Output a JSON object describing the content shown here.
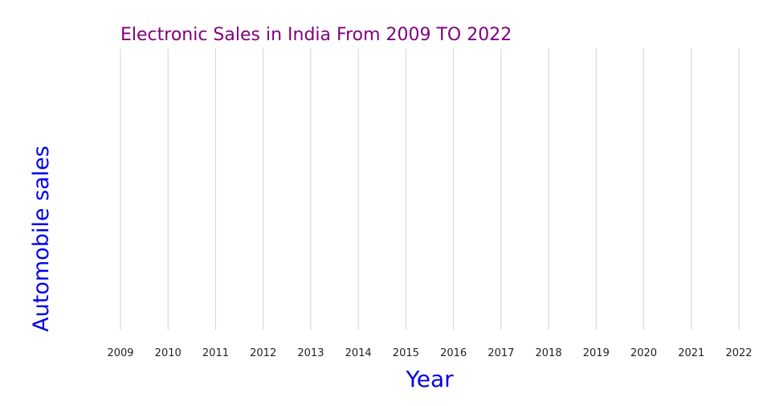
{
  "chart_data": {
    "type": "line",
    "title": "Electronic Sales in India From 2009 TO 2022",
    "xlabel": "Year",
    "ylabel": "Automobile sales",
    "x": [
      "2009",
      "2010",
      "2011",
      "2012",
      "2013",
      "2014",
      "2015",
      "2016",
      "2017",
      "2018",
      "2019",
      "2020",
      "2021",
      "2022"
    ],
    "series": [],
    "grid": {
      "x": true,
      "y": false
    },
    "colors": {
      "title": "#800080",
      "axis_label": "#0000ee",
      "tick_label": "#222222",
      "grid": "#d3d3d3"
    }
  }
}
